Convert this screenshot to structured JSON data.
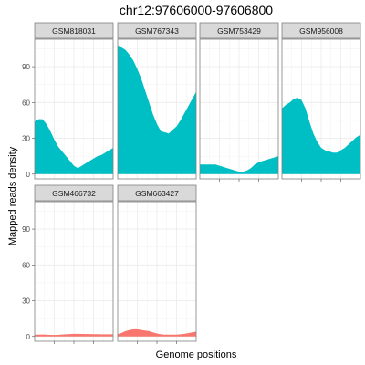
{
  "chart_data": {
    "type": "area",
    "title": "chr12:97606000-97606800",
    "xlabel": "Genome positions",
    "ylabel": "Mapped reads density",
    "ylim": [
      -4,
      113
    ],
    "y_ticks": [
      0,
      30,
      60,
      90
    ],
    "grid": true,
    "x": [
      0,
      0.05,
      0.1,
      0.15,
      0.2,
      0.25,
      0.3,
      0.35,
      0.4,
      0.45,
      0.5,
      0.55,
      0.6,
      0.65,
      0.7,
      0.75,
      0.8,
      0.85,
      0.9,
      0.95,
      1
    ],
    "series": [
      {
        "name": "GSM818031",
        "color": "#00BFC4",
        "values": [
          44,
          46,
          46,
          42,
          36,
          29,
          23,
          19,
          15,
          11,
          7,
          5,
          7,
          9,
          11,
          13,
          15,
          16,
          18,
          20,
          22
        ]
      },
      {
        "name": "GSM767343",
        "color": "#00BFC4",
        "values": [
          108,
          106,
          104,
          100,
          95,
          88,
          80,
          70,
          60,
          50,
          42,
          36,
          35,
          34,
          37,
          40,
          45,
          51,
          57,
          63,
          69
        ]
      },
      {
        "name": "GSM753429",
        "color": "#00BFC4",
        "values": [
          8,
          8,
          8,
          8,
          8,
          7,
          6,
          5,
          4,
          3,
          2,
          2,
          3,
          5,
          8,
          10,
          11,
          12,
          13,
          14,
          15
        ]
      },
      {
        "name": "GSM956008",
        "color": "#00BFC4",
        "values": [
          55,
          58,
          60,
          63,
          64,
          62,
          55,
          44,
          34,
          27,
          22,
          20,
          19,
          18,
          18,
          20,
          22,
          25,
          28,
          31,
          33
        ]
      },
      {
        "name": "GSM466732",
        "color": "#F8766D",
        "values": [
          1.5,
          1.5,
          1.6,
          1.5,
          1.4,
          1.3,
          1.4,
          1.6,
          1.8,
          2.0,
          2.2,
          2.2,
          2.1,
          2.0,
          2.0,
          1.9,
          1.9,
          1.8,
          1.8,
          1.8,
          1.8
        ]
      },
      {
        "name": "GSM663427",
        "color": "#F8766D",
        "values": [
          2,
          3,
          4.5,
          5.5,
          6,
          6,
          5.5,
          5,
          4.5,
          3.5,
          2.5,
          1.8,
          1.5,
          1.5,
          1.5,
          1.5,
          1.8,
          2.2,
          2.8,
          3.5,
          4
        ]
      }
    ]
  }
}
